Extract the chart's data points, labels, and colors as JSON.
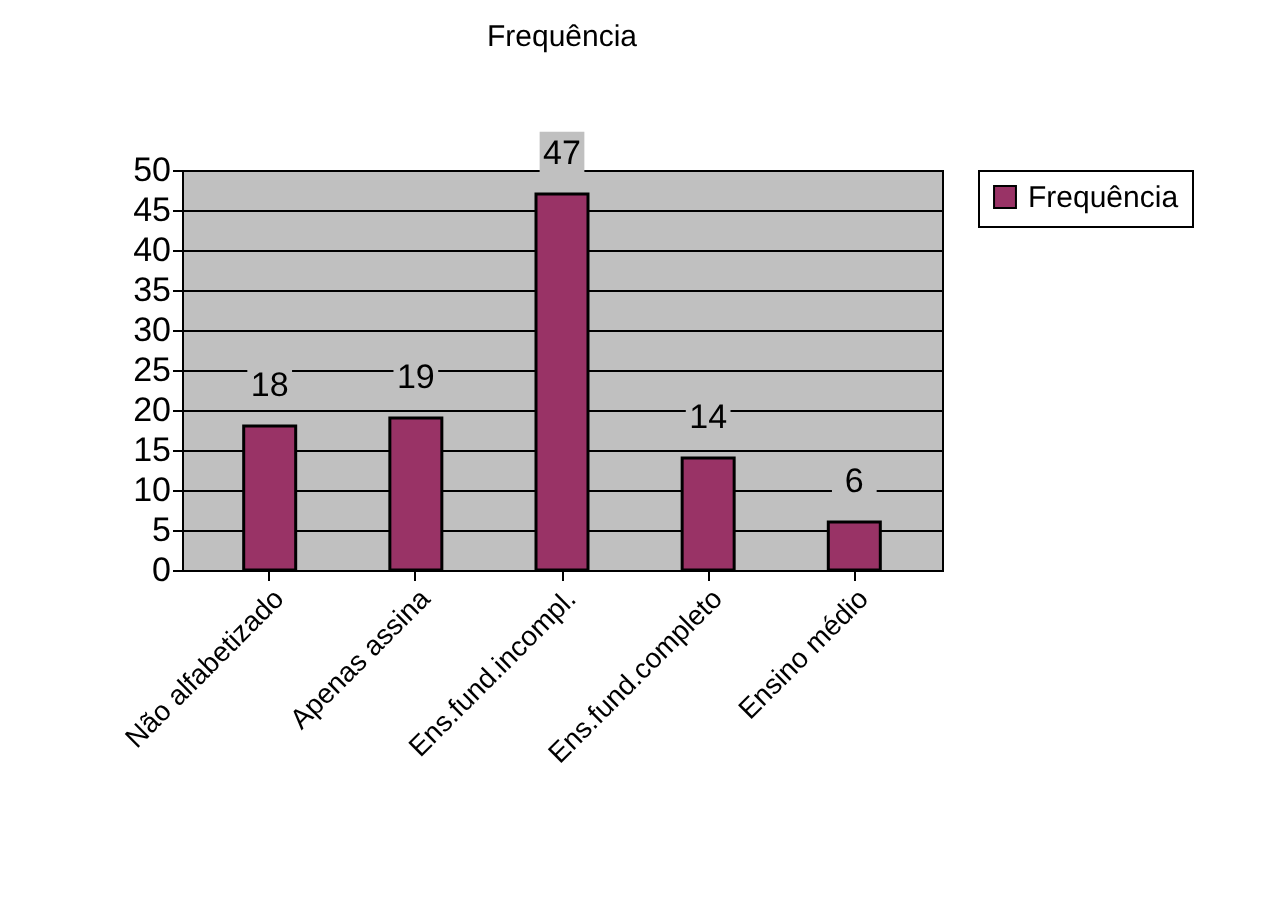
{
  "chart_data": {
    "type": "bar",
    "title": "Frequência",
    "categories": [
      "Não alfabetizado",
      "Apenas assina",
      "Ens.fund.incompl.",
      "Ens.fund.completo",
      "Ensino médio"
    ],
    "series": [
      {
        "name": "Frequência",
        "color": "#993366",
        "values": [
          18,
          19,
          47,
          14,
          6
        ]
      }
    ],
    "ylim": [
      0,
      50
    ],
    "yticks": [
      0,
      5,
      10,
      15,
      20,
      25,
      30,
      35,
      40,
      45,
      50
    ],
    "grid": "y",
    "legend": "right",
    "data_labels": true
  }
}
